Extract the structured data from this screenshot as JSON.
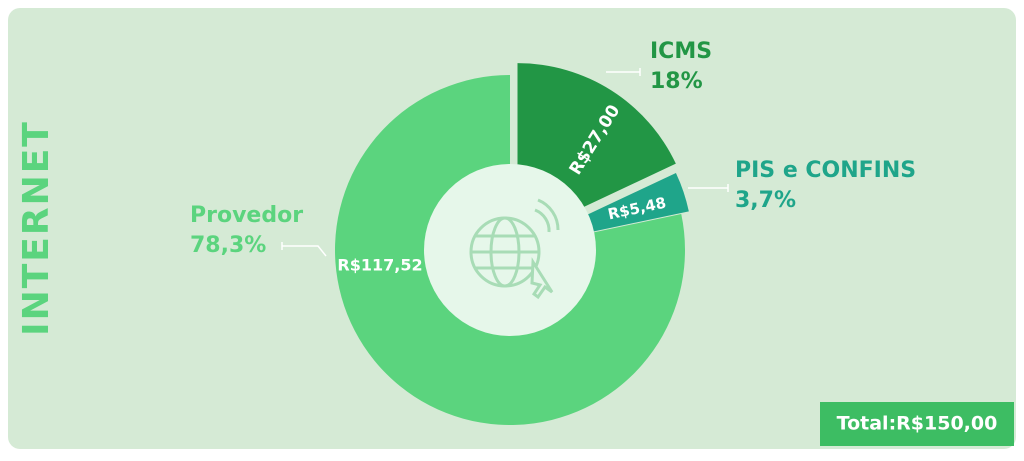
{
  "chart_data": {
    "type": "pie",
    "title": "INTERNET",
    "categories": [
      "ICMS",
      "PIS e CONFINS",
      "Provedor"
    ],
    "values": [
      18,
      3.7,
      78.3
    ],
    "value_labels": [
      "18%",
      "3,7%",
      "78,3%"
    ],
    "amounts": [
      27,
      5.48,
      117.52
    ],
    "amount_labels": [
      "R$27,00",
      "R$5,48",
      "R$117,52"
    ],
    "colors": [
      "#229645",
      "#1fa58a",
      "#5bd47e"
    ],
    "total": 150,
    "total_label": "Total:R$150,00"
  }
}
